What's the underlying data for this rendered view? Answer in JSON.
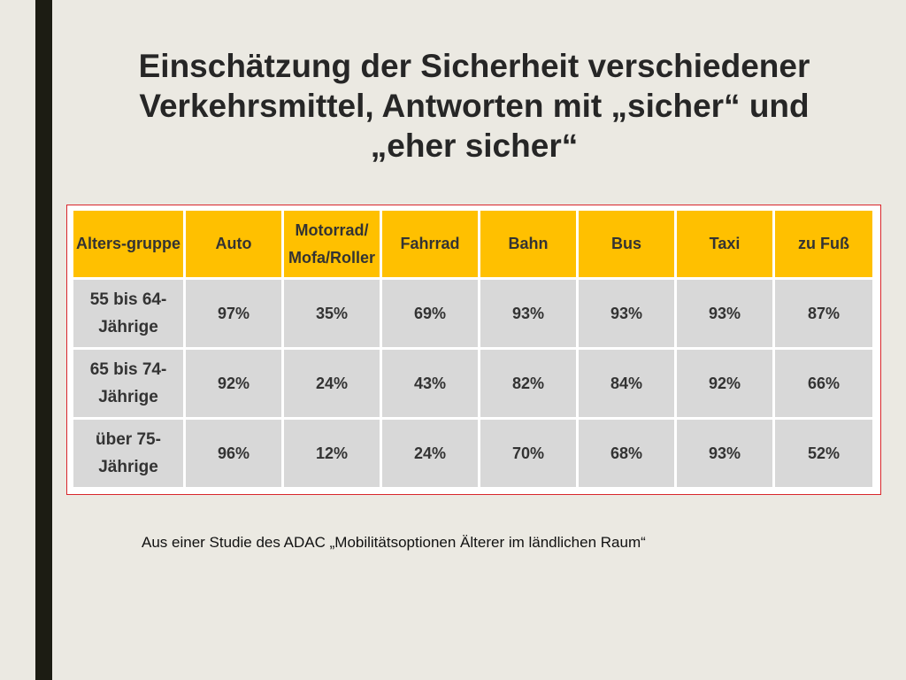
{
  "slide": {
    "title": "Einschätzung der Sicherheit verschiedener Verkehrsmittel, Antworten mit „sicher“ und „eher sicher“",
    "source": "Aus einer Studie des ADAC „Mobilitätsoptionen Älterer im ländlichen Raum“"
  },
  "table": {
    "headers": [
      "Alters-gruppe",
      "Auto",
      "Motorrad/ Mofa/Roller",
      "Fahrrad",
      "Bahn",
      "Bus",
      "Taxi",
      "zu Fuß"
    ],
    "rows": [
      [
        "55 bis 64-Jährige",
        "97%",
        "35%",
        "69%",
        "93%",
        "93%",
        "93%",
        "87%"
      ],
      [
        "65 bis 74-Jährige",
        "92%",
        "24%",
        "43%",
        "82%",
        "84%",
        "92%",
        "66%"
      ],
      [
        "über 75-Jährige",
        "96%",
        "12%",
        "24%",
        "70%",
        "68%",
        "93%",
        "52%"
      ]
    ]
  },
  "colors": {
    "header_fill": "#ffc000",
    "cell_fill": "#d8d8d8",
    "frame_border": "#d9262c",
    "left_bar": "#1c1c13"
  }
}
